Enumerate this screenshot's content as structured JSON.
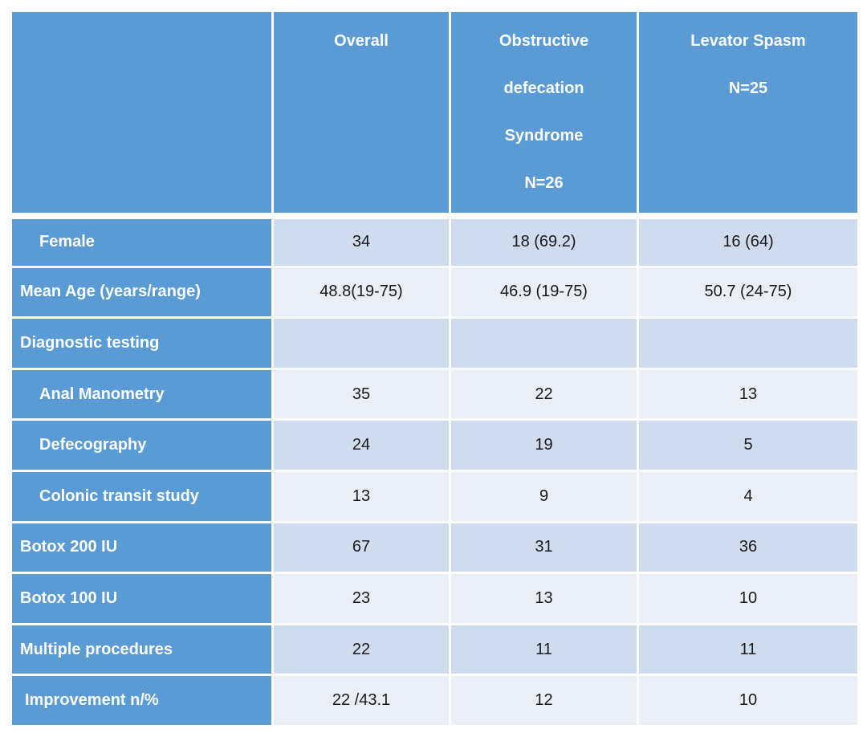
{
  "header": {
    "corner": "",
    "columns": [
      {
        "lines": [
          "Overall"
        ]
      },
      {
        "lines": [
          "Obstructive",
          "defecation",
          "Syndrome",
          "N=26"
        ]
      },
      {
        "lines": [
          "Levator Spasm",
          "N=25"
        ]
      }
    ]
  },
  "rows": [
    {
      "label": "Female",
      "indent": "indent",
      "values": [
        "34",
        "18 (69.2)",
        "16 (64)"
      ]
    },
    {
      "label": "Mean Age (years/range)",
      "indent": "",
      "values": [
        "48.8(19-75)",
        "46.9 (19-75)",
        "50.7 (24-75)"
      ]
    },
    {
      "label": "Diagnostic testing",
      "indent": "",
      "values": [
        "",
        "",
        ""
      ]
    },
    {
      "label": "Anal Manometry",
      "indent": "indent",
      "values": [
        "35",
        "22",
        "13"
      ]
    },
    {
      "label": "Defecography",
      "indent": "indent",
      "values": [
        "24",
        "19",
        "5"
      ]
    },
    {
      "label": "Colonic transit study",
      "indent": "indent",
      "values": [
        "13",
        "9",
        "4"
      ]
    },
    {
      "label": "Botox 200 IU",
      "indent": "",
      "values": [
        "67",
        "31",
        "36"
      ]
    },
    {
      "label": "Botox 100 IU",
      "indent": "",
      "values": [
        "23",
        "13",
        "10"
      ]
    },
    {
      "label": "Multiple procedures",
      "indent": "",
      "values": [
        "22",
        "11",
        "11"
      ]
    },
    {
      "label": "Improvement n/%",
      "indent": "indent-sm",
      "values": [
        "22 /43.1",
        "12",
        "10"
      ]
    }
  ],
  "colors": {
    "header_bg": "#5b9bd5",
    "row_odd": "#cfdcee",
    "row_even": "#e9eef7"
  }
}
